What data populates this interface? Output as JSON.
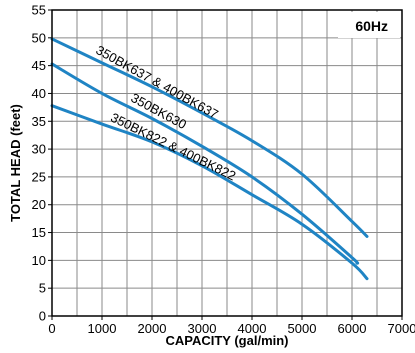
{
  "chart_data": {
    "type": "line",
    "title": "",
    "badge": "60Hz",
    "xlabel": "CAPACITY (gal/min)",
    "ylabel": "TOTAL HEAD (feet)",
    "xlim": [
      0,
      7000
    ],
    "ylim": [
      0,
      55
    ],
    "x_ticks": [
      0,
      1000,
      2000,
      3000,
      4000,
      5000,
      6000,
      7000
    ],
    "y_ticks": [
      0,
      5,
      10,
      15,
      20,
      25,
      30,
      35,
      40,
      45,
      50,
      55
    ],
    "grid": true,
    "line_color": "#1f84c4",
    "series": [
      {
        "name": "350BK637 & 400BK637",
        "x": [
          0,
          1000,
          2000,
          3000,
          4000,
          5000,
          6000,
          6300
        ],
        "y": [
          49.8,
          45.5,
          41.2,
          36.5,
          31.5,
          25.5,
          17.0,
          14.3
        ]
      },
      {
        "name": "350BK630",
        "x": [
          0,
          1000,
          2000,
          3000,
          4000,
          5000,
          6000,
          6100
        ],
        "y": [
          45.3,
          40.0,
          35.5,
          30.5,
          25.0,
          18.3,
          10.5,
          9.5
        ]
      },
      {
        "name": "350BK822 & 400BK822",
        "x": [
          0,
          1000,
          2000,
          3000,
          4000,
          5000,
          6000,
          6300
        ],
        "y": [
          37.8,
          34.5,
          31.3,
          27.0,
          21.8,
          16.5,
          9.5,
          6.7
        ]
      }
    ]
  }
}
